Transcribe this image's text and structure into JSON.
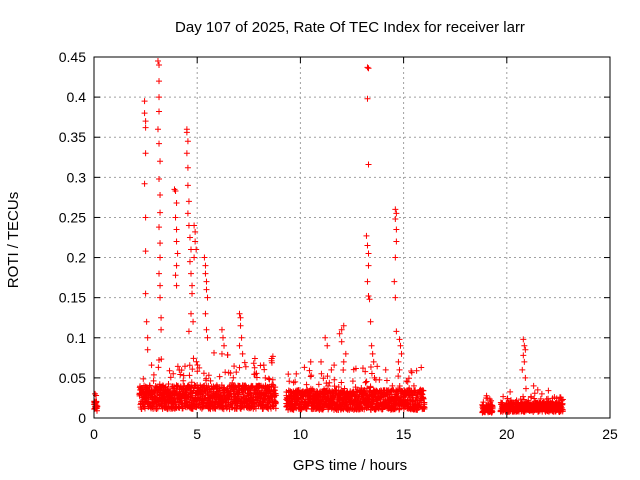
{
  "chart_data": {
    "type": "scatter",
    "title": "Day 107 of 2025, Rate Of TEC Index for receiver larr",
    "xlabel": "GPS time / hours",
    "ylabel": "ROTI / TECUs",
    "xlim": [
      0,
      25
    ],
    "ylim": [
      0,
      0.45
    ],
    "x_ticks": [
      0,
      5,
      10,
      15,
      20,
      25
    ],
    "y_ticks": [
      0,
      0.05,
      0.1,
      0.15,
      0.2,
      0.25,
      0.3,
      0.35,
      0.4,
      0.45
    ],
    "x_tick_labels": [
      "0",
      "5",
      "10",
      "15",
      "20",
      "25"
    ],
    "y_tick_labels": [
      "0",
      "0.05",
      "0.1",
      "0.15",
      "0.2",
      "0.25",
      "0.3",
      "0.35",
      "0.4",
      "0.45"
    ],
    "grid": true,
    "marker": "+",
    "color": "#ff0000",
    "segments": [
      {
        "x_start": 0.0,
        "x_end": 0.15,
        "base": 0.018,
        "spread": 0.012
      },
      {
        "x_start": 2.2,
        "x_end": 8.8,
        "base": 0.022,
        "spread": 0.03
      },
      {
        "x_start": 9.3,
        "x_end": 16.0,
        "base": 0.02,
        "spread": 0.025
      },
      {
        "x_start": 18.8,
        "x_end": 19.3,
        "base": 0.013,
        "spread": 0.01
      },
      {
        "x_start": 19.7,
        "x_end": 22.7,
        "base": 0.015,
        "spread": 0.012
      }
    ],
    "outliers": [
      [
        0.05,
        0.03
      ],
      [
        0.1,
        0.028
      ],
      [
        0.02,
        0.02
      ],
      [
        2.45,
        0.395
      ],
      [
        2.45,
        0.38
      ],
      [
        2.5,
        0.37
      ],
      [
        2.5,
        0.362
      ],
      [
        2.5,
        0.33
      ],
      [
        2.45,
        0.292
      ],
      [
        2.5,
        0.25
      ],
      [
        2.5,
        0.208
      ],
      [
        2.5,
        0.155
      ],
      [
        2.55,
        0.12
      ],
      [
        2.6,
        0.1
      ],
      [
        2.6,
        0.085
      ],
      [
        3.1,
        0.445
      ],
      [
        3.15,
        0.44
      ],
      [
        3.15,
        0.42
      ],
      [
        3.15,
        0.4
      ],
      [
        3.15,
        0.382
      ],
      [
        3.1,
        0.36
      ],
      [
        3.15,
        0.342
      ],
      [
        3.2,
        0.32
      ],
      [
        3.15,
        0.298
      ],
      [
        3.2,
        0.278
      ],
      [
        3.2,
        0.256
      ],
      [
        3.15,
        0.238
      ],
      [
        3.2,
        0.218
      ],
      [
        3.2,
        0.2
      ],
      [
        3.15,
        0.18
      ],
      [
        3.2,
        0.165
      ],
      [
        3.2,
        0.15
      ],
      [
        3.25,
        0.125
      ],
      [
        3.25,
        0.11
      ],
      [
        3.9,
        0.285
      ],
      [
        3.95,
        0.283
      ],
      [
        4.0,
        0.268
      ],
      [
        3.95,
        0.25
      ],
      [
        4.0,
        0.235
      ],
      [
        4.0,
        0.22
      ],
      [
        4.05,
        0.205
      ],
      [
        4.0,
        0.19
      ],
      [
        3.95,
        0.178
      ],
      [
        4.0,
        0.165
      ],
      [
        4.5,
        0.36
      ],
      [
        4.5,
        0.356
      ],
      [
        4.55,
        0.345
      ],
      [
        4.5,
        0.33
      ],
      [
        4.55,
        0.312
      ],
      [
        4.55,
        0.29
      ],
      [
        4.6,
        0.27
      ],
      [
        4.55,
        0.255
      ],
      [
        4.6,
        0.24
      ],
      [
        4.65,
        0.225
      ],
      [
        4.7,
        0.21
      ],
      [
        4.65,
        0.195
      ],
      [
        4.7,
        0.18
      ],
      [
        4.75,
        0.165
      ],
      [
        4.75,
        0.155
      ],
      [
        4.7,
        0.13
      ],
      [
        4.8,
        0.12
      ],
      [
        4.6,
        0.108
      ],
      [
        4.85,
        0.24
      ],
      [
        4.9,
        0.232
      ],
      [
        4.9,
        0.22
      ],
      [
        4.95,
        0.21
      ],
      [
        4.85,
        0.2
      ],
      [
        5.35,
        0.2
      ],
      [
        5.4,
        0.19
      ],
      [
        5.4,
        0.18
      ],
      [
        5.45,
        0.17
      ],
      [
        5.45,
        0.16
      ],
      [
        5.5,
        0.15
      ],
      [
        5.4,
        0.13
      ],
      [
        5.45,
        0.11
      ],
      [
        5.5,
        0.1
      ],
      [
        6.2,
        0.11
      ],
      [
        6.25,
        0.1
      ],
      [
        6.3,
        0.09
      ],
      [
        6.2,
        0.08
      ],
      [
        7.05,
        0.13
      ],
      [
        7.1,
        0.125
      ],
      [
        7.1,
        0.115
      ],
      [
        7.15,
        0.1
      ],
      [
        7.05,
        0.09
      ],
      [
        7.2,
        0.08
      ],
      [
        8.3,
        0.05
      ],
      [
        8.5,
        0.048
      ],
      [
        9.8,
        0.055
      ],
      [
        10.5,
        0.07
      ],
      [
        11.2,
        0.1
      ],
      [
        11.3,
        0.09
      ],
      [
        11.0,
        0.07
      ],
      [
        11.5,
        0.06
      ],
      [
        11.9,
        0.105
      ],
      [
        12.0,
        0.11
      ],
      [
        12.1,
        0.115
      ],
      [
        12.0,
        0.095
      ],
      [
        12.2,
        0.08
      ],
      [
        12.1,
        0.07
      ],
      [
        13.25,
        0.437
      ],
      [
        13.3,
        0.436
      ],
      [
        13.25,
        0.398
      ],
      [
        13.3,
        0.316
      ],
      [
        13.2,
        0.227
      ],
      [
        13.25,
        0.215
      ],
      [
        13.3,
        0.205
      ],
      [
        13.3,
        0.19
      ],
      [
        13.25,
        0.17
      ],
      [
        13.3,
        0.152
      ],
      [
        13.35,
        0.148
      ],
      [
        13.4,
        0.12
      ],
      [
        13.45,
        0.09
      ],
      [
        13.5,
        0.08
      ],
      [
        13.55,
        0.07
      ],
      [
        14.6,
        0.26
      ],
      [
        14.65,
        0.255
      ],
      [
        14.6,
        0.248
      ],
      [
        14.65,
        0.235
      ],
      [
        14.65,
        0.22
      ],
      [
        14.6,
        0.2
      ],
      [
        14.55,
        0.17
      ],
      [
        14.6,
        0.15
      ],
      [
        14.65,
        0.108
      ],
      [
        14.8,
        0.098
      ],
      [
        14.85,
        0.09
      ],
      [
        14.9,
        0.08
      ],
      [
        14.75,
        0.07
      ],
      [
        14.8,
        0.06
      ],
      [
        15.2,
        0.045
      ],
      [
        15.5,
        0.04
      ],
      [
        19.0,
        0.025
      ],
      [
        19.2,
        0.02
      ],
      [
        20.8,
        0.098
      ],
      [
        20.85,
        0.09
      ],
      [
        20.9,
        0.085
      ],
      [
        20.8,
        0.078
      ],
      [
        20.85,
        0.07
      ],
      [
        20.75,
        0.06
      ],
      [
        20.9,
        0.05
      ],
      [
        21.3,
        0.04
      ],
      [
        21.5,
        0.035
      ],
      [
        21.7,
        0.03
      ]
    ]
  }
}
